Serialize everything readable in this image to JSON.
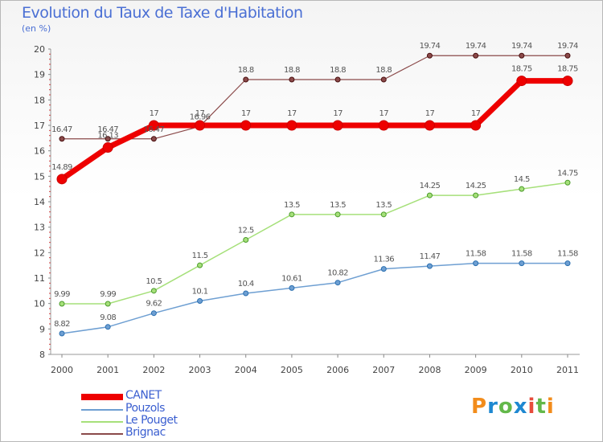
{
  "title": "Evolution du Taux de Taxe d'Habitation",
  "unit_label": "(en %)",
  "logo": {
    "text": "Proxiti",
    "colors": [
      "#f28c1b",
      "#1e88d1",
      "#63b84a",
      "#1e88d1",
      "#e74c3c",
      "#63b84a",
      "#f28c1b"
    ]
  },
  "chart_data": {
    "type": "line",
    "x": [
      "2000",
      "2001",
      "2002",
      "2003",
      "2004",
      "2005",
      "2006",
      "2007",
      "2008",
      "2009",
      "2010",
      "2011"
    ],
    "ylim": [
      8,
      20
    ],
    "yticks": [
      "8",
      "9",
      "10",
      "11",
      "12",
      "13",
      "14",
      "15",
      "16",
      "17",
      "18",
      "19",
      "20"
    ],
    "grid": false,
    "legend_position": "bottom-left",
    "series": [
      {
        "name": "CANET",
        "color": "#ee0000",
        "values": [
          14.89,
          16.13,
          17,
          17,
          17,
          17,
          17,
          17,
          17,
          17,
          18.75,
          18.75
        ],
        "labels": [
          "14.89",
          "16.13",
          "17",
          "17",
          "17",
          "17",
          "17",
          "17",
          "17",
          "17",
          "18.75",
          "18.75"
        ]
      },
      {
        "name": "Pouzols",
        "color": "#6e9fd2",
        "values": [
          8.82,
          9.08,
          9.62,
          10.1,
          10.4,
          10.61,
          10.82,
          11.36,
          11.47,
          11.58,
          11.58,
          11.58
        ],
        "labels": [
          "8.82",
          "9.08",
          "9.62",
          "10.1",
          "10.4",
          "10.61",
          "10.82",
          "11.36",
          "11.47",
          "11.58",
          "11.58",
          "11.58"
        ]
      },
      {
        "name": "Le Pouget",
        "color": "#a6e07a",
        "values": [
          9.99,
          9.99,
          10.5,
          11.5,
          12.5,
          13.5,
          13.5,
          13.5,
          14.25,
          14.25,
          14.5,
          14.75
        ],
        "labels": [
          "9.99",
          "9.99",
          "10.5",
          "11.5",
          "12.5",
          "13.5",
          "13.5",
          "13.5",
          "14.25",
          "14.25",
          "14.5",
          "14.75"
        ]
      },
      {
        "name": "Brignac",
        "color": "#8b4a4a",
        "values": [
          16.47,
          16.47,
          16.47,
          16.96,
          18.8,
          18.8,
          18.8,
          18.8,
          19.74,
          19.74,
          19.74,
          19.74
        ],
        "labels": [
          "16.47",
          "16.47",
          "16.47",
          "16.96",
          "18.8",
          "18.8",
          "18.8",
          "18.8",
          "19.74",
          "19.74",
          "19.74",
          "19.74"
        ]
      }
    ]
  }
}
